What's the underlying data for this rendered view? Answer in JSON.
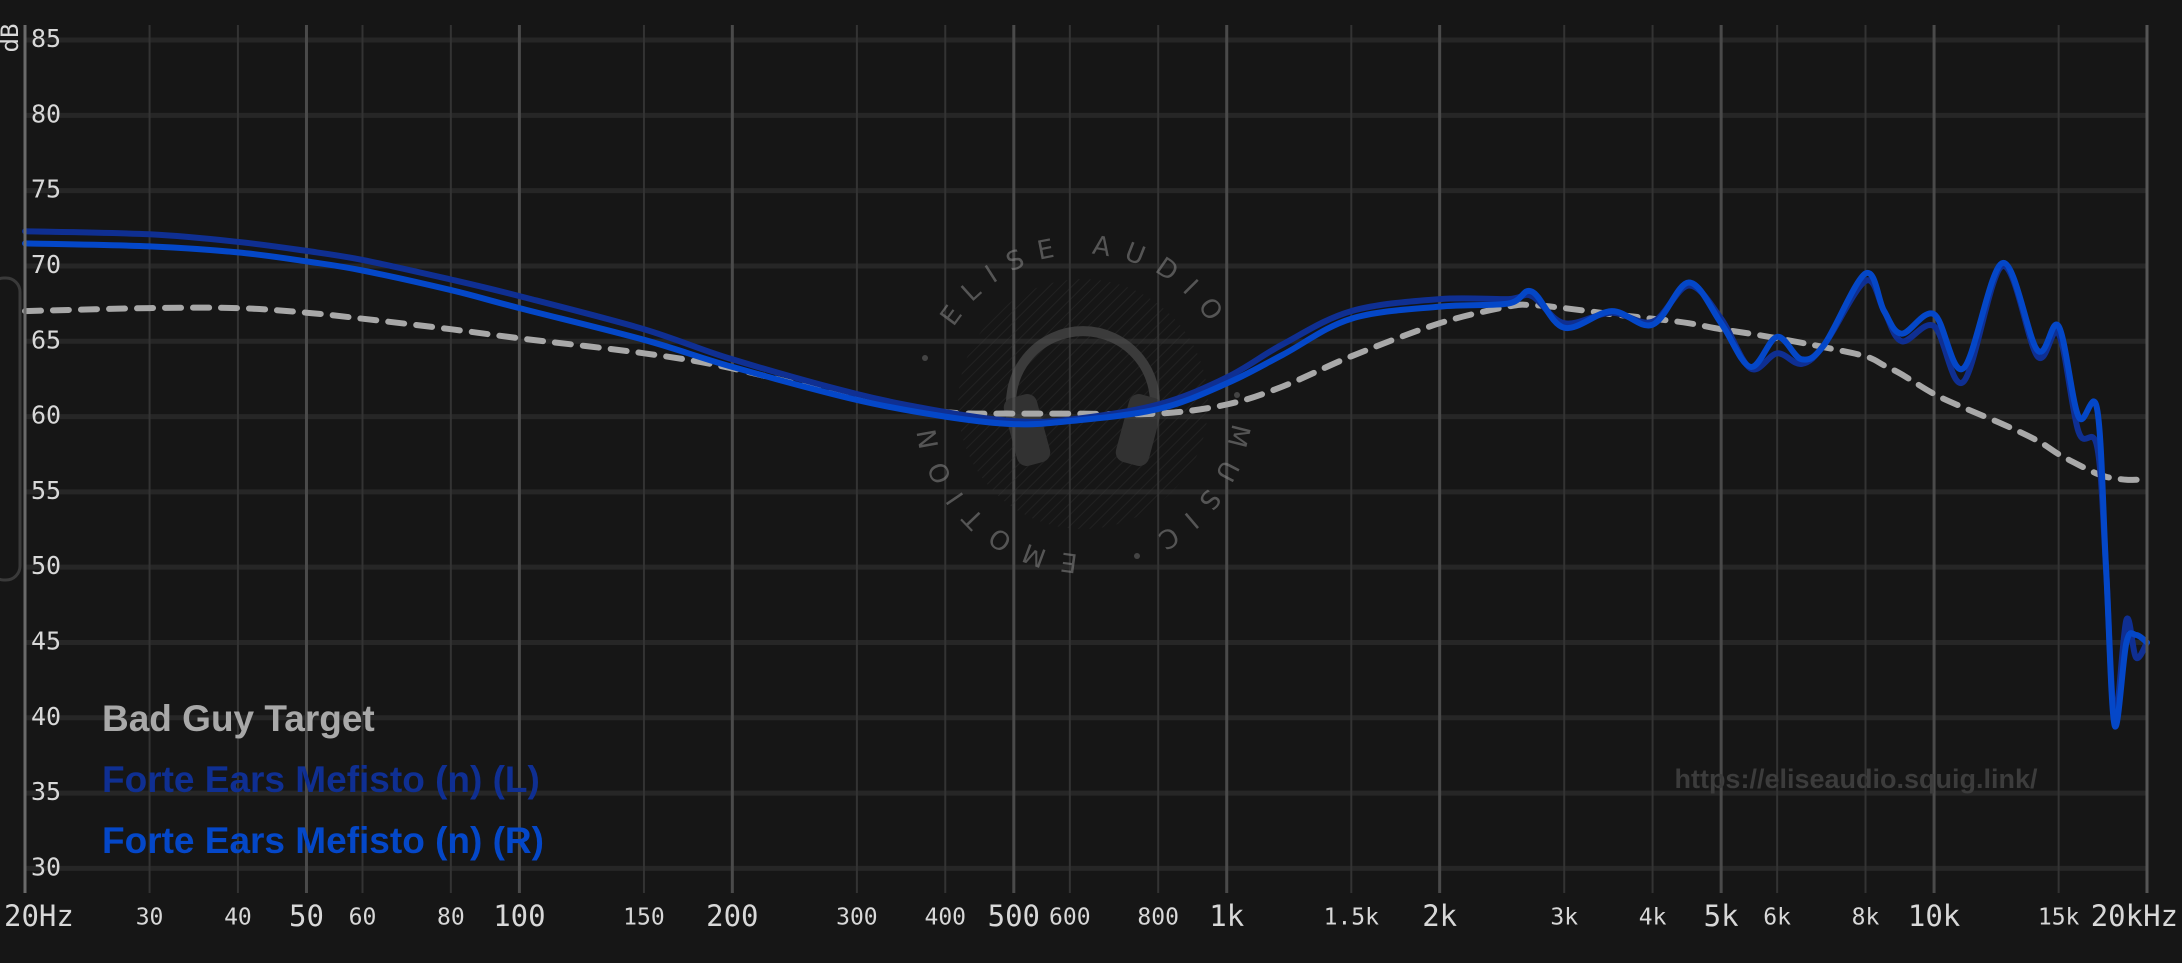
{
  "chart_data": {
    "type": "line",
    "ylabel": "dB",
    "xscale": "log",
    "grid": true,
    "legend": "lower left",
    "background": "#161616",
    "url": "https://eliseaudio.squig.link/",
    "watermark": [
      "ELISE AUDIO",
      "MUSIC",
      "EMOTION"
    ],
    "xlim": [
      20,
      20000
    ],
    "ylim": [
      28.5,
      85.8
    ],
    "xticks": [
      {
        "value": 20,
        "label": "20Hz"
      },
      30,
      40,
      50,
      60,
      80,
      100,
      150,
      200,
      300,
      400,
      500,
      600,
      800,
      {
        "value": 1000,
        "label": "1k"
      },
      {
        "value": 1500,
        "label": "1.5k"
      },
      {
        "value": 2000,
        "label": "2k"
      },
      {
        "value": 3000,
        "label": "3k"
      },
      {
        "value": 4000,
        "label": "4k"
      },
      {
        "value": 5000,
        "label": "5k"
      },
      {
        "value": 6000,
        "label": "6k"
      },
      {
        "value": 8000,
        "label": "8k"
      },
      {
        "value": 10000,
        "label": "10k"
      },
      {
        "value": 15000,
        "label": "15k"
      },
      {
        "value": 20000,
        "label": "20kHz"
      }
    ],
    "yticks": [
      30,
      35,
      40,
      45,
      50,
      55,
      60,
      65,
      70,
      75,
      80,
      85
    ],
    "x": [
      20,
      30,
      40,
      50,
      60,
      80,
      100,
      150,
      200,
      300,
      400,
      500,
      600,
      800,
      1000,
      1200,
      1500,
      2000,
      2500,
      2700,
      3000,
      3500,
      4000,
      4500,
      5000,
      5500,
      6000,
      6500,
      7000,
      8000,
      8500,
      9000,
      10000,
      11000,
      12500,
      14000,
      15000,
      16000,
      17000,
      17500,
      18000,
      18700,
      19300,
      20000
    ],
    "series": [
      {
        "name": "Bad Guy Target",
        "color": "#a8a8a8",
        "dashed": true,
        "values": [
          67,
          67.2,
          67.2,
          66.9,
          66.5,
          65.8,
          65.2,
          64.2,
          63.2,
          61.2,
          60.3,
          60.2,
          60.2,
          60.2,
          60.8,
          62,
          64,
          66.2,
          67.3,
          67.4,
          67.2,
          66.8,
          66.5,
          66.2,
          65.8,
          65.5,
          65.2,
          64.9,
          64.6,
          64,
          63.4,
          62.8,
          61.5,
          60.6,
          59.5,
          58.4,
          57.5,
          56.8,
          56.2,
          56,
          55.9,
          55.8,
          55.8,
          55.8
        ]
      },
      {
        "name": "Forte Ears Mefisto (n) (L)",
        "color": "#0f2f92",
        "values": [
          72.3,
          72.1,
          71.6,
          71,
          70.4,
          69.1,
          68,
          65.8,
          63.8,
          61.5,
          60.3,
          59.7,
          59.8,
          60.8,
          62.6,
          64.8,
          67,
          67.8,
          67.8,
          68,
          66.2,
          66.9,
          66.3,
          68.7,
          66.5,
          63.2,
          64.2,
          63.5,
          64.8,
          69,
          67,
          65,
          66,
          62.3,
          70,
          64,
          65.5,
          59,
          58,
          50,
          40,
          46.5,
          44,
          45
        ]
      },
      {
        "name": "Forte Ears Mefisto (n) (R)",
        "color": "#0447c8",
        "values": [
          71.5,
          71.3,
          70.9,
          70.3,
          69.7,
          68.4,
          67.2,
          65.1,
          63.3,
          61.1,
          60,
          59.5,
          59.7,
          60.5,
          62.2,
          64.1,
          66.5,
          67.3,
          67.5,
          68.3,
          65.9,
          67,
          66.1,
          68.9,
          66.2,
          63.3,
          65.3,
          63.8,
          64.8,
          69.5,
          67,
          65.5,
          66.8,
          63.2,
          70.2,
          64.4,
          66,
          60,
          60.5,
          50,
          39.5,
          45,
          45.5,
          45
        ]
      }
    ]
  }
}
